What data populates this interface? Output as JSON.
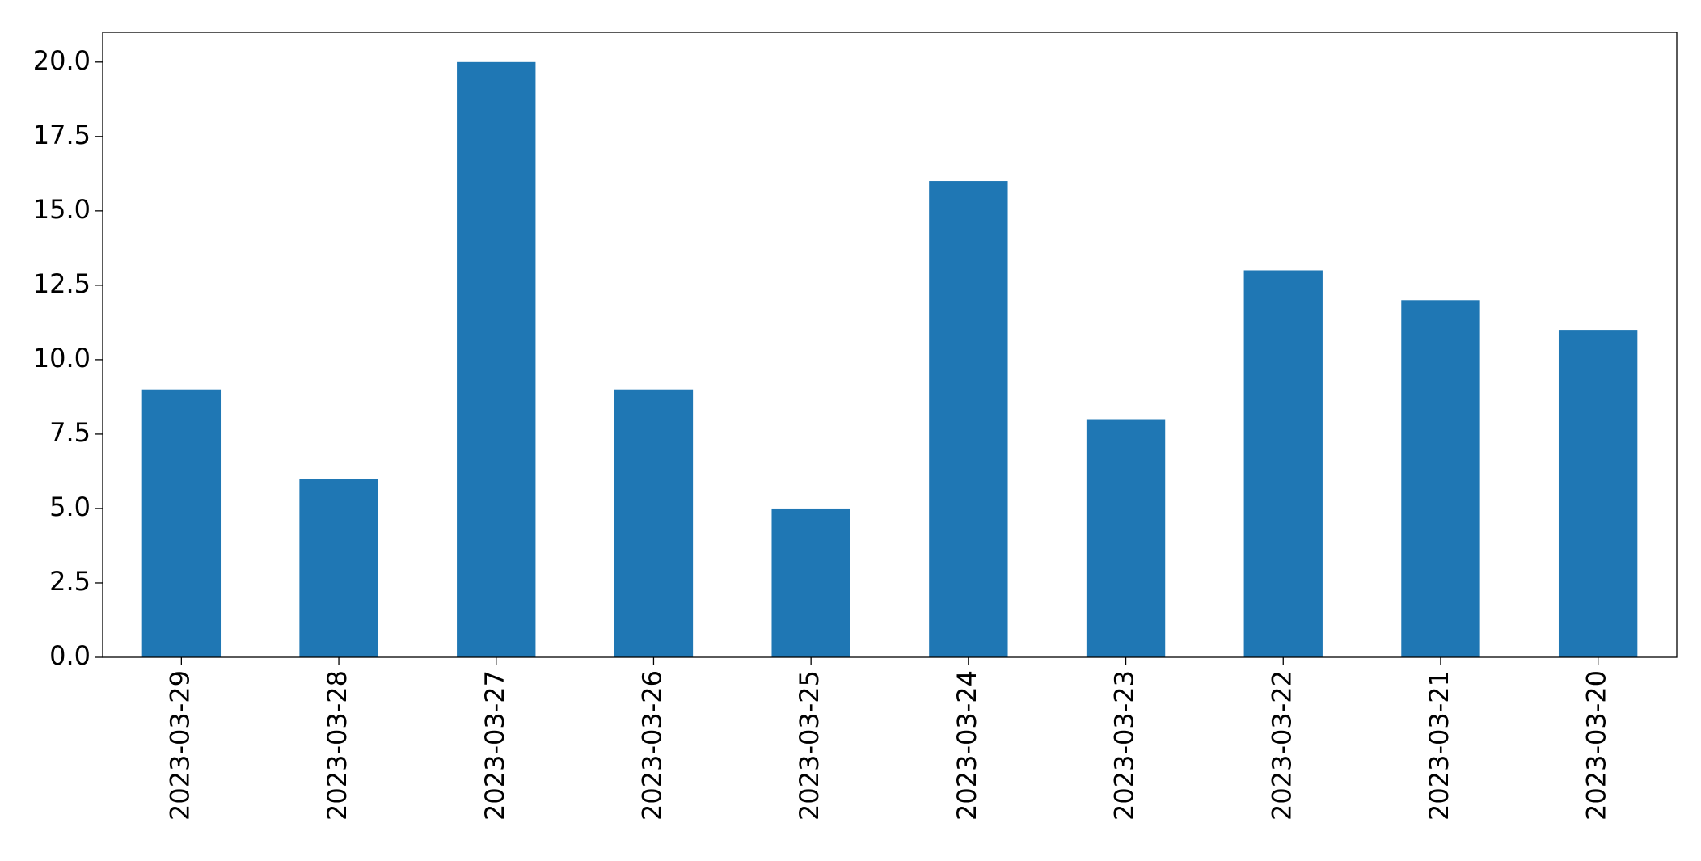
{
  "chart_data": {
    "type": "bar",
    "categories": [
      "2023-03-29",
      "2023-03-28",
      "2023-03-27",
      "2023-03-26",
      "2023-03-25",
      "2023-03-24",
      "2023-03-23",
      "2023-03-22",
      "2023-03-21",
      "2023-03-20"
    ],
    "values": [
      9,
      6,
      20,
      9,
      5,
      16,
      8,
      13,
      12,
      11
    ],
    "color": "#1f77b4",
    "ylim": [
      0,
      21
    ],
    "yticks": [
      {
        "value": 0,
        "label": "0.0"
      },
      2.5,
      {
        "value": 5,
        "label": "5.0"
      },
      7.5,
      {
        "value": 10,
        "label": "10.0"
      },
      12.5,
      {
        "value": 15,
        "label": "15.0"
      },
      17.5,
      {
        "value": 20,
        "label": "20.0"
      }
    ],
    "grid": false
  }
}
